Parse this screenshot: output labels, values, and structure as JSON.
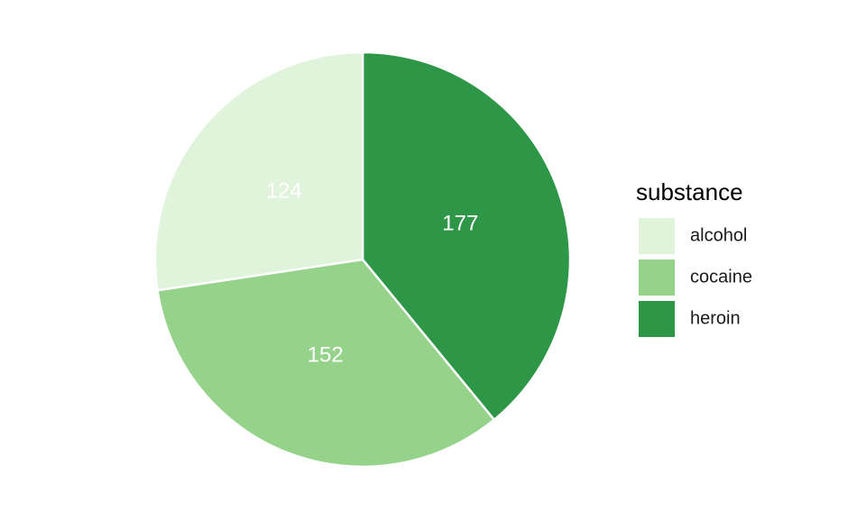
{
  "chart_data": {
    "type": "pie",
    "categories": [
      "alcohol",
      "cocaine",
      "heroin"
    ],
    "values": [
      124,
      152,
      177
    ],
    "colors": [
      "#e0f3db",
      "#95d38a",
      "#2e9647"
    ],
    "slice_order": [
      "heroin",
      "cocaine",
      "alcohol"
    ],
    "start_angle": "12 o'clock",
    "direction": "clockwise",
    "legend": {
      "title": "substance",
      "position": "right",
      "entries": [
        "alcohol",
        "cocaine",
        "heroin"
      ]
    },
    "data_labels_shown": true
  }
}
